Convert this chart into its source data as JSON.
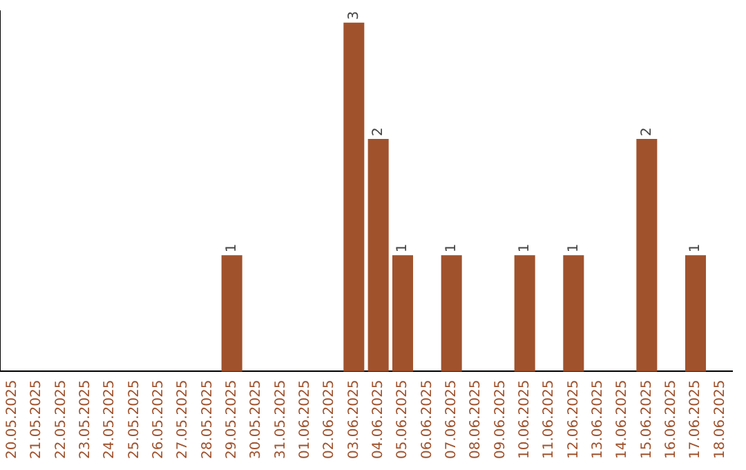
{
  "chart_data": {
    "type": "bar",
    "categories": [
      "20.05.2025",
      "21.05.2025",
      "22.05.2025",
      "23.05.2025",
      "24.05.2025",
      "25.05.2025",
      "26.05.2025",
      "27.05.2025",
      "28.05.2025",
      "29.05.2025",
      "30.05.2025",
      "31.05.2025",
      "01.06.2025",
      "02.06.2025",
      "03.06.2025",
      "04.06.2025",
      "05.06.2025",
      "06.06.2025",
      "07.06.2025",
      "08.06.2025",
      "09.06.2025",
      "10.06.2025",
      "11.06.2025",
      "12.06.2025",
      "13.06.2025",
      "14.06.2025",
      "15.06.2025",
      "16.06.2025",
      "17.06.2025",
      "18.06.2025"
    ],
    "values": [
      0,
      0,
      0,
      0,
      0,
      0,
      0,
      0,
      0,
      1,
      0,
      0,
      0,
      0,
      3,
      2,
      1,
      0,
      1,
      0,
      0,
      1,
      0,
      1,
      0,
      0,
      2,
      0,
      1,
      0
    ],
    "value_labels": [
      null,
      null,
      null,
      null,
      null,
      null,
      null,
      null,
      null,
      "1",
      null,
      null,
      null,
      null,
      "3",
      "2",
      "1",
      null,
      "1",
      null,
      null,
      "1",
      null,
      "1",
      null,
      null,
      "2",
      null,
      "1",
      null
    ],
    "color": "#a0522d",
    "ylim": [
      0,
      3.1
    ],
    "grid": false,
    "legend": false,
    "tick_labels": "x"
  }
}
